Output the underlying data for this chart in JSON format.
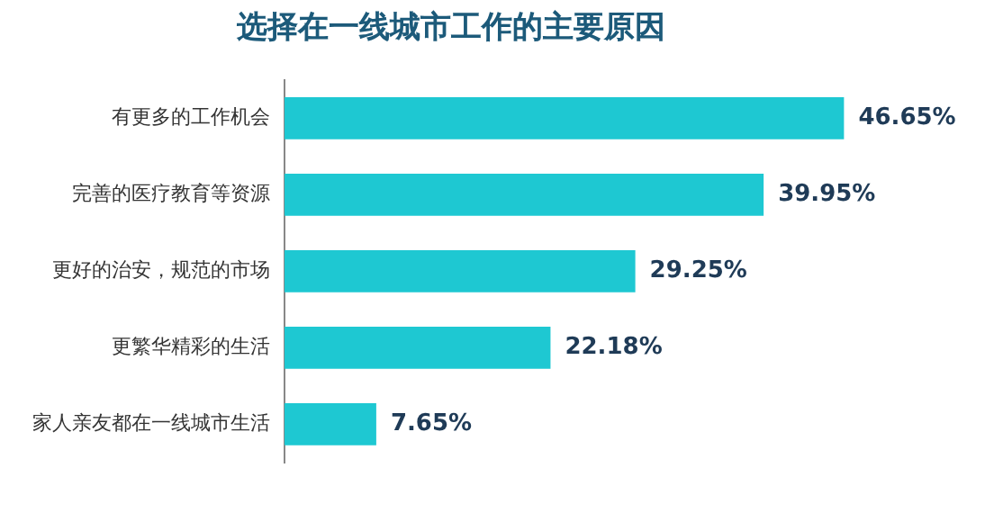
{
  "chart_data": {
    "type": "bar",
    "orientation": "horizontal",
    "title": "选择在一线城市工作的主要原因",
    "categories": [
      "有更多的工作机会",
      "完善的医疗教育等资源",
      "更好的治安，规范的市场",
      "更繁华精彩的生活",
      "家人亲友都在一线城市生活"
    ],
    "values": [
      46.65,
      39.95,
      29.25,
      22.18,
      7.65
    ],
    "value_labels": [
      "46.65%",
      "39.95%",
      "29.25%",
      "22.18%",
      "7.65%"
    ],
    "color": "#1ec8d2"
  }
}
